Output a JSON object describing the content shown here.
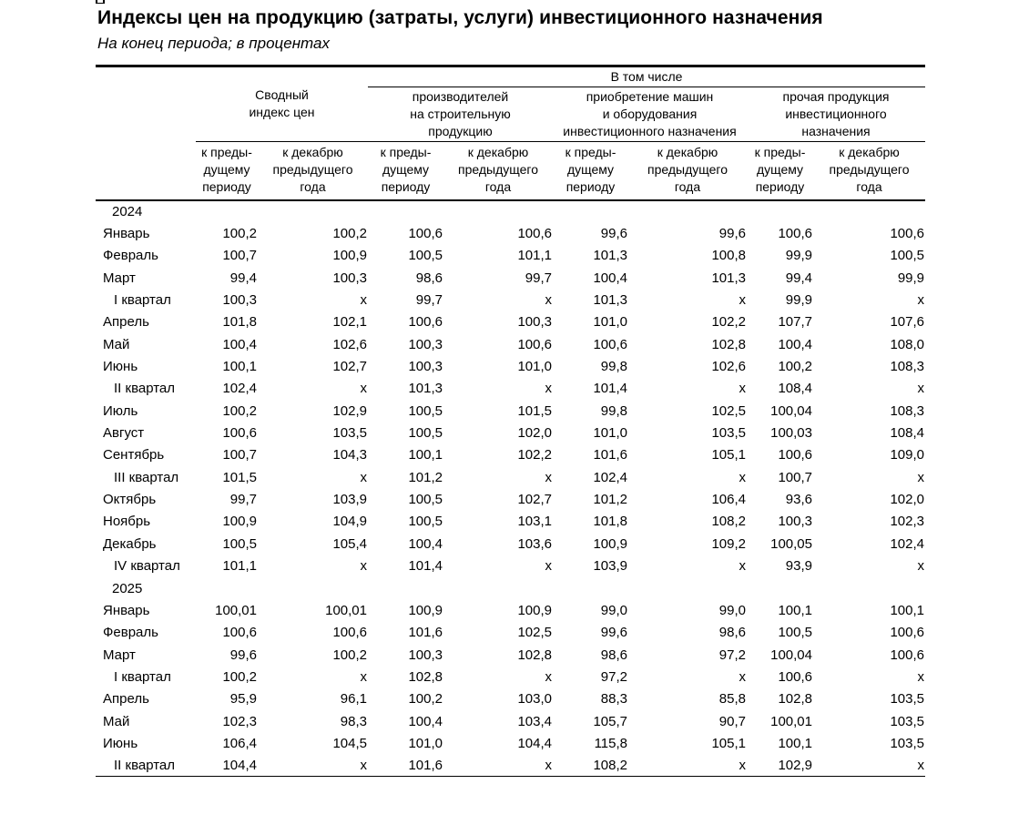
{
  "page": {
    "title": "Индексы цен на продукцию (затраты, услуги) инвестиционного назначения",
    "subtitle": "На конец периода; в процентах"
  },
  "table": {
    "header": {
      "summary_index": "Сводный\nиндекс цен",
      "including": "В том числе",
      "groups": [
        "производителей\nна строительную\nпродукцию",
        "приобретение машин\nи оборудования\nинвестиционного назначения",
        "прочая продукция\nинвестиционного\nназначения"
      ],
      "sub_headers": [
        "к преды-\nдущему\nпериоду",
        "к декабрю\nпредыдущего\nгода",
        "к преды-\nдущему\nпериоду",
        "к декабрю\nпредыдущего\nгода",
        "к преды-\nдущему\nпериоду",
        "к декабрю\nпредыдущего\nгода",
        "к преды-\nдущему\nпериоду",
        "к декабрю\nпредыдущего\nгода"
      ]
    },
    "missing_value_symbol": "х",
    "rows": [
      {
        "label": "2024",
        "type": "year",
        "values": []
      },
      {
        "label": "Январь",
        "type": "month",
        "values": [
          "100,2",
          "100,2",
          "100,6",
          "100,6",
          "99,6",
          "99,6",
          "100,6",
          "100,6"
        ]
      },
      {
        "label": "Февраль",
        "type": "month",
        "values": [
          "100,7",
          "100,9",
          "100,5",
          "101,1",
          "101,3",
          "100,8",
          "99,9",
          "100,5"
        ]
      },
      {
        "label": "Март",
        "type": "month",
        "values": [
          "99,4",
          "100,3",
          "98,6",
          "99,7",
          "100,4",
          "101,3",
          "99,4",
          "99,9"
        ]
      },
      {
        "label": "I квартал",
        "type": "quarter",
        "values": [
          "100,3",
          "х",
          "99,7",
          "х",
          "101,3",
          "х",
          "99,9",
          "х"
        ]
      },
      {
        "label": "Апрель",
        "type": "month",
        "values": [
          "101,8",
          "102,1",
          "100,6",
          "100,3",
          "101,0",
          "102,2",
          "107,7",
          "107,6"
        ]
      },
      {
        "label": "Май",
        "type": "month",
        "values": [
          "100,4",
          "102,6",
          "100,3",
          "100,6",
          "100,6",
          "102,8",
          "100,4",
          "108,0"
        ]
      },
      {
        "label": "Июнь",
        "type": "month",
        "values": [
          "100,1",
          "102,7",
          "100,3",
          "101,0",
          "99,8",
          "102,6",
          "100,2",
          "108,3"
        ]
      },
      {
        "label": "II квартал",
        "type": "quarter",
        "values": [
          "102,4",
          "х",
          "101,3",
          "х",
          "101,4",
          "х",
          "108,4",
          "х"
        ]
      },
      {
        "label": "Июль",
        "type": "month",
        "values": [
          "100,2",
          "102,9",
          "100,5",
          "101,5",
          "99,8",
          "102,5",
          "100,04",
          "108,3"
        ]
      },
      {
        "label": "Август",
        "type": "month",
        "values": [
          "100,6",
          "103,5",
          "100,5",
          "102,0",
          "101,0",
          "103,5",
          "100,03",
          "108,4"
        ]
      },
      {
        "label": "Сентябрь",
        "type": "month",
        "values": [
          "100,7",
          "104,3",
          "100,1",
          "102,2",
          "101,6",
          "105,1",
          "100,6",
          "109,0"
        ]
      },
      {
        "label": "III квартал",
        "type": "quarter",
        "values": [
          "101,5",
          "х",
          "101,2",
          "х",
          "102,4",
          "х",
          "100,7",
          "х"
        ]
      },
      {
        "label": "Октябрь",
        "type": "month",
        "values": [
          "99,7",
          "103,9",
          "100,5",
          "102,7",
          "101,2",
          "106,4",
          "93,6",
          "102,0"
        ]
      },
      {
        "label": "Ноябрь",
        "type": "month",
        "values": [
          "100,9",
          "104,9",
          "100,5",
          "103,1",
          "101,8",
          "108,2",
          "100,3",
          "102,3"
        ]
      },
      {
        "label": "Декабрь",
        "type": "month",
        "values": [
          "100,5",
          "105,4",
          "100,4",
          "103,6",
          "100,9",
          "109,2",
          "100,05",
          "102,4"
        ]
      },
      {
        "label": "IV квартал",
        "type": "quarter",
        "values": [
          "101,1",
          "х",
          "101,4",
          "х",
          "103,9",
          "х",
          "93,9",
          "х"
        ]
      },
      {
        "label": "2025",
        "type": "year",
        "values": []
      },
      {
        "label": "Январь",
        "type": "month",
        "values": [
          "100,01",
          "100,01",
          "100,9",
          "100,9",
          "99,0",
          "99,0",
          "100,1",
          "100,1"
        ]
      },
      {
        "label": "Февраль",
        "type": "month",
        "values": [
          "100,6",
          "100,6",
          "101,6",
          "102,5",
          "99,6",
          "98,6",
          "100,5",
          "100,6"
        ]
      },
      {
        "label": "Март",
        "type": "month",
        "values": [
          "99,6",
          "100,2",
          "100,3",
          "102,8",
          "98,6",
          "97,2",
          "100,04",
          "100,6"
        ]
      },
      {
        "label": "I квартал",
        "type": "quarter",
        "values": [
          "100,2",
          "х",
          "102,8",
          "х",
          "97,2",
          "х",
          "100,6",
          "х"
        ]
      },
      {
        "label": "Апрель",
        "type": "month",
        "values": [
          "95,9",
          "96,1",
          "100,2",
          "103,0",
          "88,3",
          "85,8",
          "102,8",
          "103,5"
        ]
      },
      {
        "label": "Май",
        "type": "month",
        "values": [
          "102,3",
          "98,3",
          "100,4",
          "103,4",
          "105,7",
          "90,7",
          "100,01",
          "103,5"
        ]
      },
      {
        "label": "Июнь",
        "type": "month",
        "values": [
          "106,4",
          "104,5",
          "101,0",
          "104,4",
          "115,8",
          "105,1",
          "100,1",
          "103,5"
        ]
      },
      {
        "label": "II квартал",
        "type": "quarter",
        "values": [
          "104,4",
          "х",
          "101,6",
          "х",
          "108,2",
          "х",
          "102,9",
          "х"
        ]
      }
    ]
  }
}
